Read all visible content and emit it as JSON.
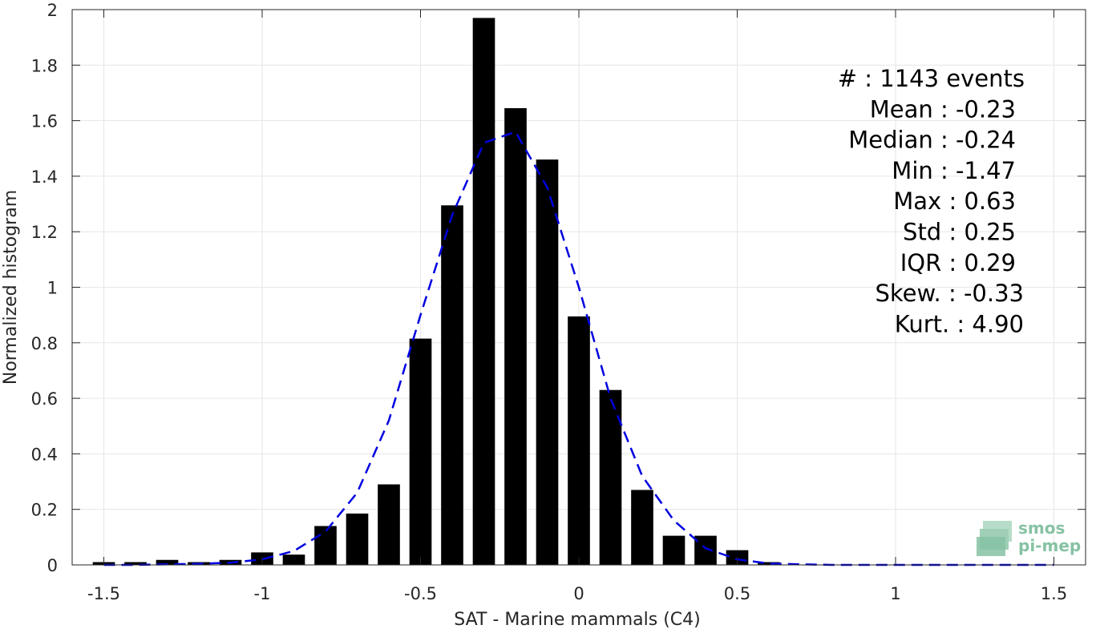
{
  "chart_data": {
    "type": "bar",
    "xlabel": "SAT - Marine mammals (C4)",
    "ylabel": "Normalized histogram",
    "xlim": [
      -1.6,
      1.6
    ],
    "ylim": [
      0,
      2
    ],
    "grid": true,
    "x_ticks": [
      "-1.5",
      "-1",
      "-0.5",
      "0",
      "0.5",
      "1",
      "1.5"
    ],
    "x_tick_values": [
      -1.5,
      -1,
      -0.5,
      0,
      0.5,
      1,
      1.5
    ],
    "y_ticks": [
      "0",
      "0.2",
      "0.4",
      "0.6",
      "0.8",
      "1",
      "1.2",
      "1.4",
      "1.6",
      "1.8",
      "2"
    ],
    "y_tick_values": [
      0,
      0.2,
      0.4,
      0.6,
      0.8,
      1,
      1.2,
      1.4,
      1.6,
      1.8,
      2
    ],
    "bar_width": 0.07,
    "bar_color": "#000000",
    "bars": {
      "x": [
        -1.5,
        -1.4,
        -1.3,
        -1.2,
        -1.1,
        -1.0,
        -0.9,
        -0.8,
        -0.7,
        -0.6,
        -0.5,
        -0.4,
        -0.3,
        -0.2,
        -0.1,
        0.0,
        0.1,
        0.2,
        0.3,
        0.4,
        0.5,
        0.6
      ],
      "values": [
        0.01,
        0.01,
        0.018,
        0.01,
        0.018,
        0.045,
        0.037,
        0.14,
        0.185,
        0.29,
        0.815,
        1.295,
        1.97,
        1.645,
        1.46,
        0.895,
        0.63,
        0.27,
        0.105,
        0.105,
        0.053,
        0.01
      ]
    },
    "fit_line": {
      "style": "dashed",
      "color": "#0000e0",
      "x": [
        -1.5,
        -1.4,
        -1.3,
        -1.2,
        -1.1,
        -1.0,
        -0.9,
        -0.8,
        -0.7,
        -0.6,
        -0.5,
        -0.4,
        -0.3,
        -0.2,
        -0.1,
        0.0,
        0.1,
        0.2,
        0.3,
        0.4,
        0.5,
        0.6,
        0.7,
        0.8,
        0.9,
        1.0,
        1.1,
        1.2,
        1.3,
        1.4,
        1.5
      ],
      "y": [
        0.0,
        0.0,
        0.002,
        0.004,
        0.008,
        0.02,
        0.05,
        0.12,
        0.26,
        0.52,
        0.9,
        1.26,
        1.52,
        1.56,
        1.36,
        1.0,
        0.6,
        0.32,
        0.16,
        0.06,
        0.02,
        0.005,
        0.002,
        0.0,
        0.0,
        0.0,
        0.0,
        0.0,
        0.0,
        0.0,
        0.0
      ]
    },
    "annotations": [
      "#  : 1143 events",
      "Mean : -0.23",
      "Median : -0.24",
      "Min : -1.47",
      "Max : 0.63",
      "Std : 0.25",
      "IQR : 0.29",
      "Skew. : -0.33",
      "Kurt. : 4.90"
    ]
  },
  "logo": {
    "line1": "smos",
    "line2": "pi-mep"
  }
}
